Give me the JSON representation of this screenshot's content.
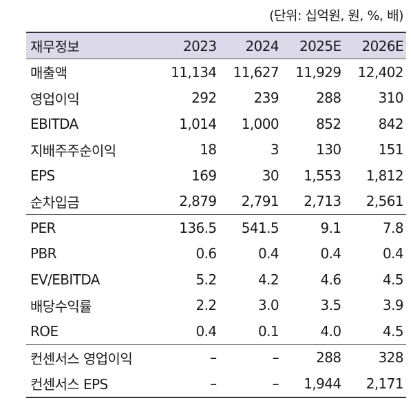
{
  "unit_note": "(단위: 십억원, 원, %, 배)",
  "table": {
    "headers": [
      "재무정보",
      "2023",
      "2024",
      "2025E",
      "2026E"
    ],
    "rows": [
      {
        "label": "매출액",
        "values": [
          "11,134",
          "11,627",
          "11,929",
          "12,402"
        ]
      },
      {
        "label": "영업이익",
        "values": [
          "292",
          "239",
          "288",
          "310"
        ]
      },
      {
        "label": "EBITDA",
        "values": [
          "1,014",
          "1,000",
          "852",
          "842"
        ]
      },
      {
        "label": "지배주주순이익",
        "values": [
          "18",
          "3",
          "130",
          "151"
        ]
      },
      {
        "label": "EPS",
        "values": [
          "169",
          "30",
          "1,553",
          "1,812"
        ]
      },
      {
        "label": "순차입금",
        "values": [
          "2,879",
          "2,791",
          "2,713",
          "2,561"
        ]
      },
      {
        "label": "PER",
        "values": [
          "136.5",
          "541.5",
          "9.1",
          "7.8"
        ]
      },
      {
        "label": "PBR",
        "values": [
          "0.6",
          "0.4",
          "0.4",
          "0.4"
        ]
      },
      {
        "label": "EV/EBITDA",
        "values": [
          "5.2",
          "4.2",
          "4.6",
          "4.5"
        ]
      },
      {
        "label": "배당수익률",
        "values": [
          "2.2",
          "3.0",
          "3.5",
          "3.9"
        ]
      },
      {
        "label": "ROE",
        "values": [
          "0.4",
          "0.1",
          "4.0",
          "4.5"
        ]
      },
      {
        "label": "컨센서스 영업이익",
        "values": [
          "–",
          "–",
          "288",
          "328"
        ]
      },
      {
        "label": "컨센서스 EPS",
        "values": [
          "–",
          "–",
          "1,944",
          "2,171"
        ]
      }
    ]
  }
}
